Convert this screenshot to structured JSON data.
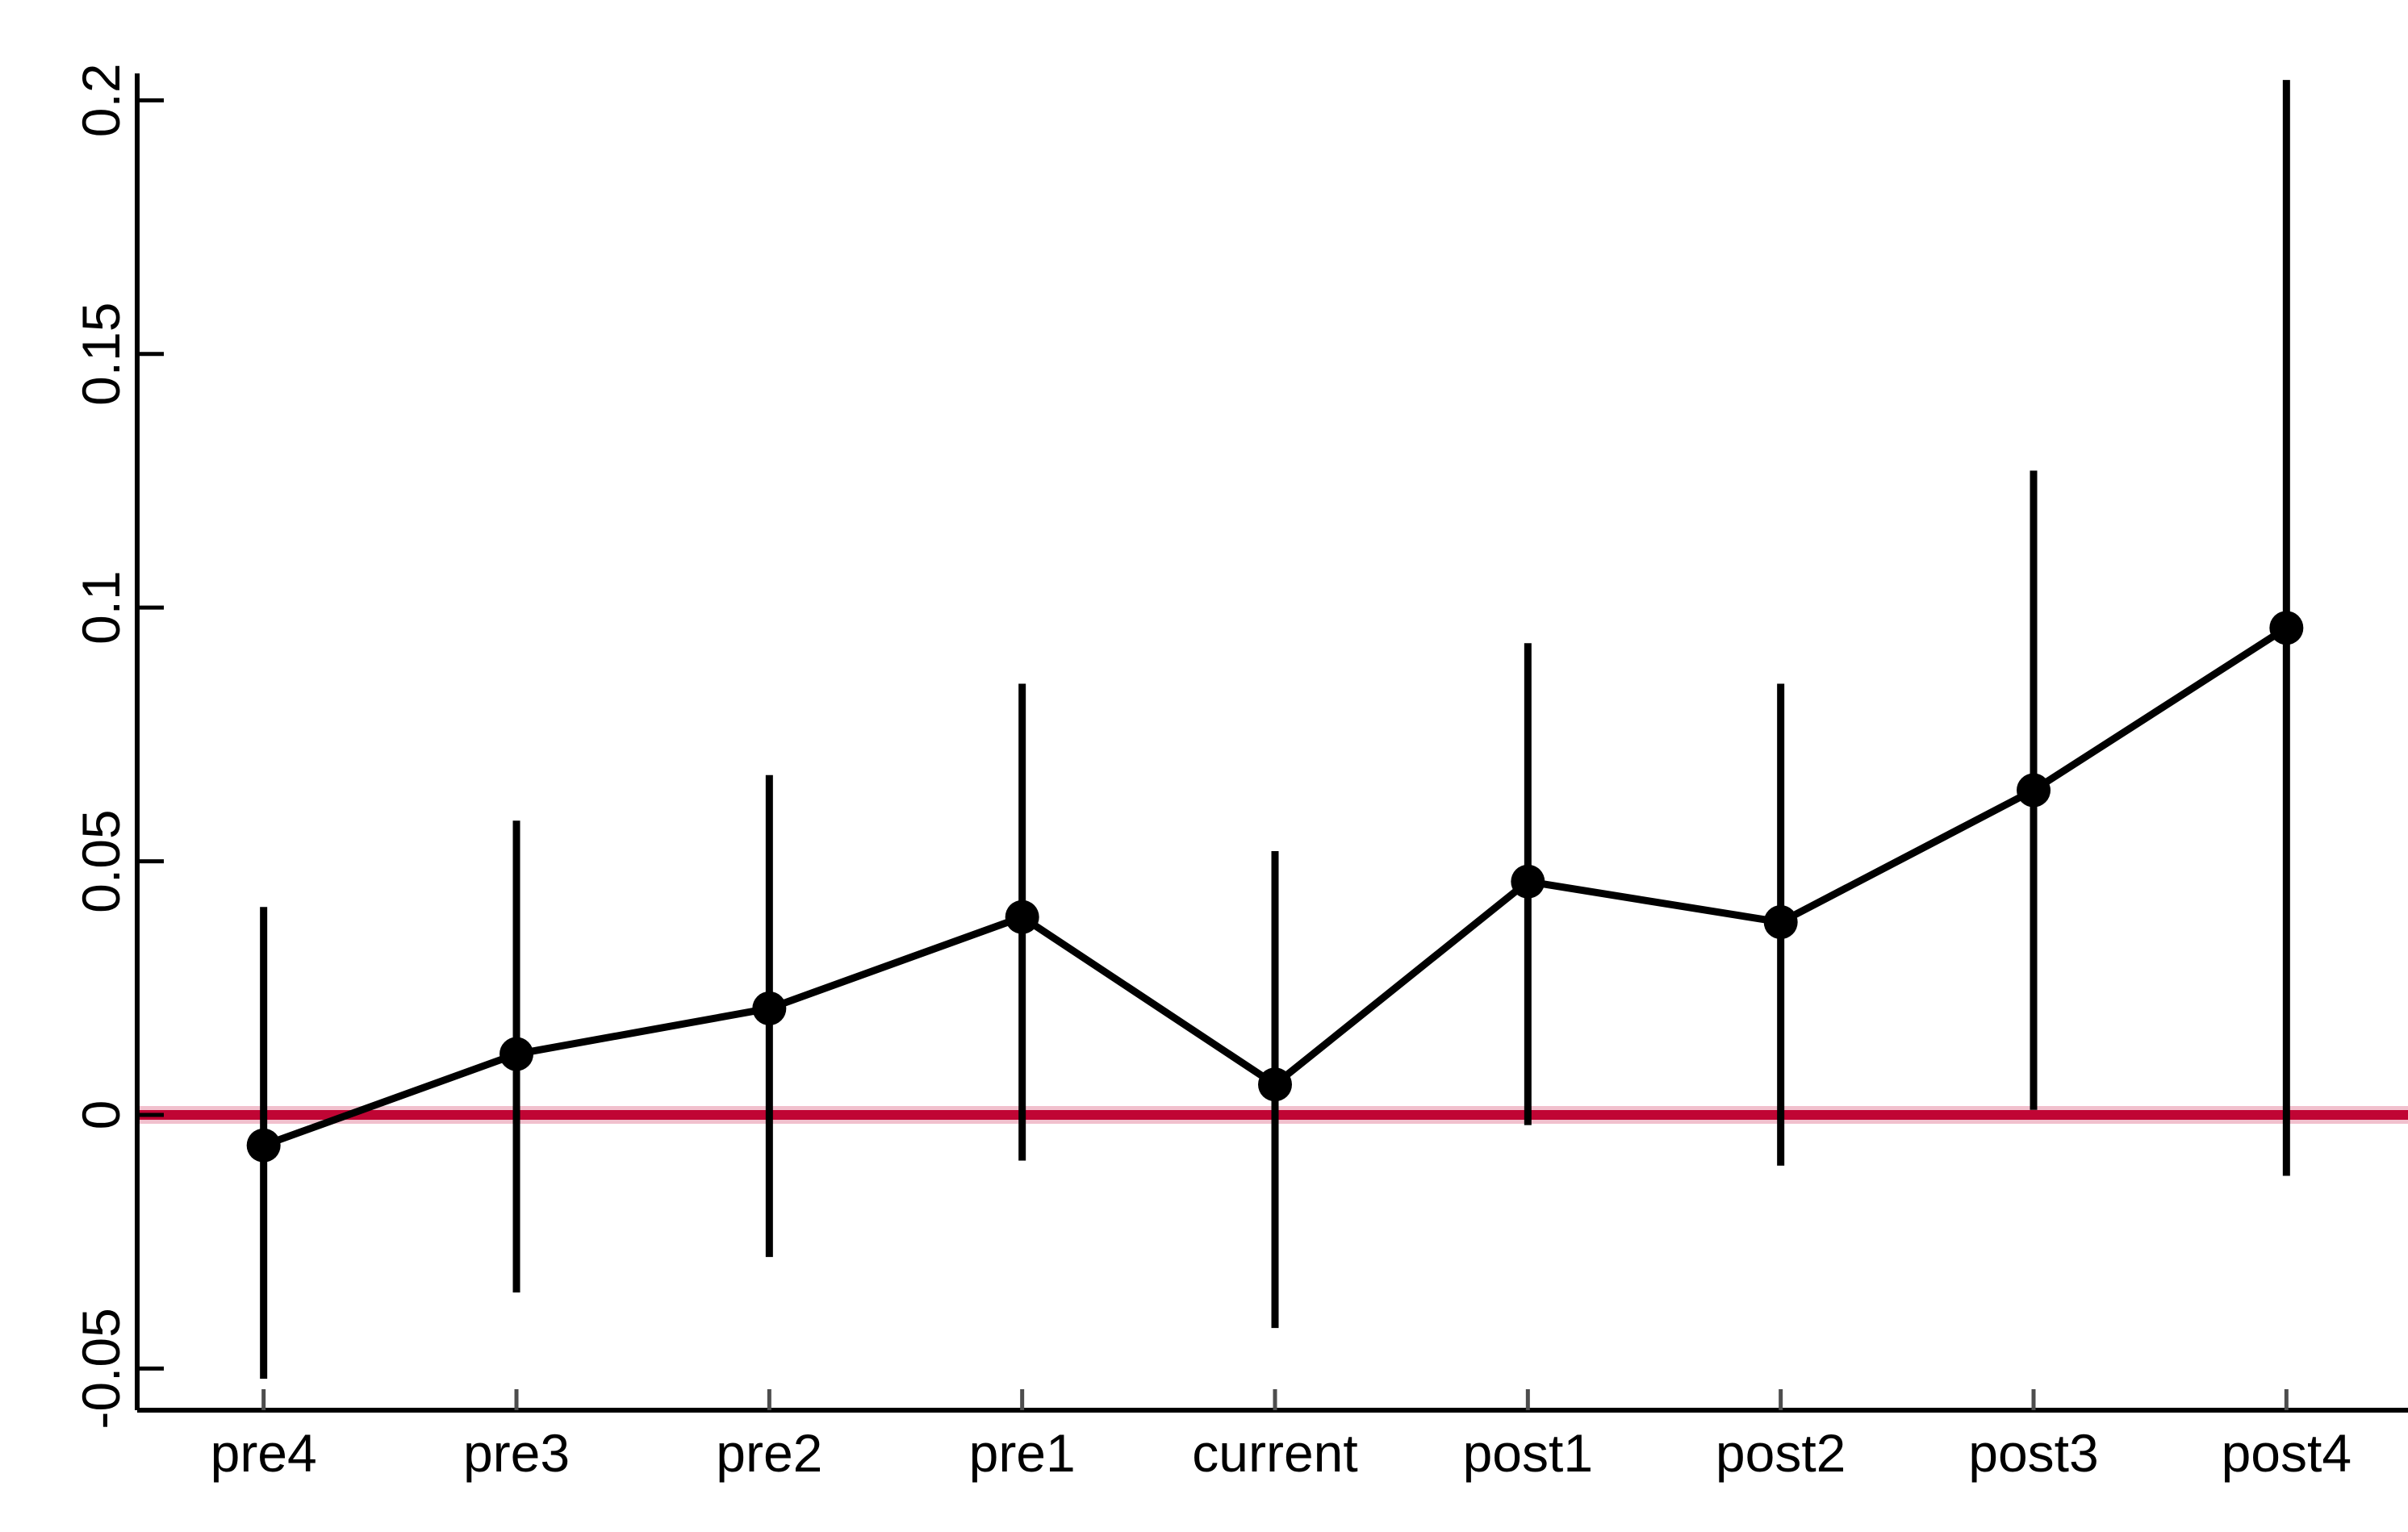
{
  "chart_data": {
    "type": "line",
    "subtype": "coefficient-plot-with-error-bars",
    "title": "",
    "xlabel": "",
    "ylabel": "",
    "categories": [
      "pre4",
      "pre3",
      "pre2",
      "pre1",
      "current",
      "post1",
      "post2",
      "post3",
      "post4"
    ],
    "values": [
      -0.006,
      0.012,
      0.021,
      0.039,
      0.006,
      0.046,
      0.038,
      0.064,
      0.096
    ],
    "ci_low": [
      -0.052,
      -0.035,
      -0.028,
      -0.009,
      -0.042,
      -0.002,
      -0.01,
      0.001,
      -0.012
    ],
    "ci_high": [
      0.041,
      0.058,
      0.067,
      0.085,
      0.052,
      0.093,
      0.085,
      0.127,
      0.204
    ],
    "yticks": [
      -0.05,
      0,
      0.05,
      0.1,
      0.15,
      0.2
    ],
    "ytick_labels": [
      "-0.05",
      "0",
      "0.05",
      "0.1",
      "0.15",
      "0.2"
    ],
    "ylim": [
      -0.0582,
      0.2053
    ],
    "grid": false,
    "legend": false,
    "marker": "circle",
    "reference_line": {
      "y": 0
    },
    "colors": {
      "point": "#000000",
      "line": "#000000",
      "ci": "#000000",
      "axis": "#000000",
      "text": "#000000",
      "x_tick": "#4d4d4d",
      "zero_line": "#c00534",
      "zero_line_halo": "#f1c0cd",
      "background": "#ffffff"
    }
  }
}
